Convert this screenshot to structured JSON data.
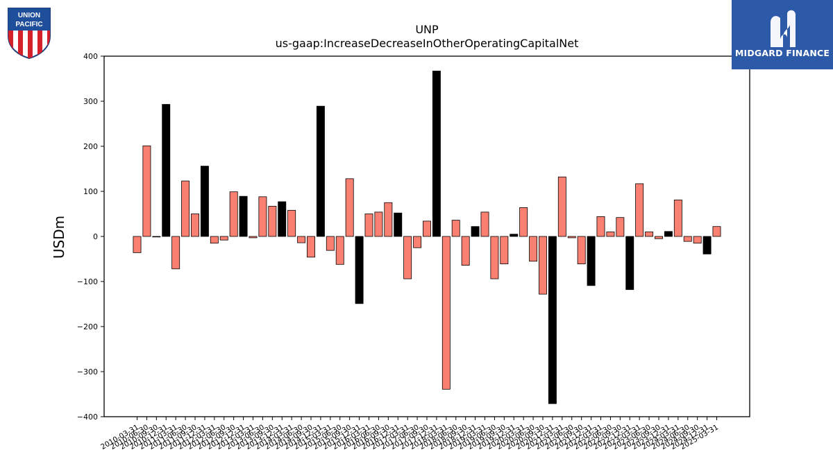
{
  "logos": {
    "left_name": "UNION PACIFIC",
    "left_line1": "UNION",
    "left_line2": "PACIFIC",
    "right_name": "MIDGARD FINANCE",
    "right_bg": "#2d59a9"
  },
  "colors": {
    "positive": "#fa8072",
    "highlight": "#000000"
  },
  "chart_data": {
    "type": "bar",
    "title": "UNP",
    "subtitle": "us-gaap:IncreaseDecreaseInOtherOperatingCapitalNet",
    "xlabel": "",
    "ylabel": "USDm",
    "ylim": [
      -400,
      400
    ],
    "yticks": [
      -400,
      -300,
      -200,
      -100,
      0,
      100,
      200,
      300,
      400
    ],
    "grid": false,
    "categories": [
      "2010-03-31",
      "2010-06-30",
      "2010-09-30",
      "2010-12-31",
      "2011-03-31",
      "2011-06-30",
      "2011-09-30",
      "2011-12-31",
      "2012-03-31",
      "2012-06-30",
      "2012-09-30",
      "2012-12-31",
      "2013-03-31",
      "2013-06-30",
      "2013-09-30",
      "2013-12-31",
      "2014-03-31",
      "2014-06-30",
      "2014-09-30",
      "2014-12-31",
      "2015-03-31",
      "2015-06-30",
      "2015-09-30",
      "2015-12-31",
      "2016-03-31",
      "2016-06-30",
      "2016-09-30",
      "2016-12-31",
      "2017-03-31",
      "2017-06-30",
      "2017-09-30",
      "2017-12-31",
      "2018-03-31",
      "2018-06-30",
      "2018-09-30",
      "2018-12-31",
      "2019-03-31",
      "2019-06-30",
      "2019-09-30",
      "2019-12-31",
      "2020-03-31",
      "2020-06-30",
      "2020-09-30",
      "2020-12-31",
      "2021-03-31",
      "2021-06-30",
      "2021-09-30",
      "2021-12-31",
      "2022-03-31",
      "2022-06-30",
      "2022-09-30",
      "2022-12-31",
      "2023-03-31",
      "2023-06-30",
      "2023-09-30",
      "2023-12-31",
      "2024-03-31",
      "2024-06-30",
      "2024-09-30",
      "2024-12-31",
      "2025-03-31"
    ],
    "tick_labels": [
      "2010-03-31",
      "2010-06-30",
      "2010-09-30",
      "2010-12-31",
      "2011-03-31",
      "2011-06-30",
      "2011-09-30",
      "2011-12-31",
      "2012-03-31",
      "2012-06-30",
      "2012-09-30",
      "2012-12-31",
      "2013-03-31",
      "2013-06-30",
      "2013-09-30",
      "2013-12-31",
      "2014-03-31",
      "2014-06-30",
      "2014-09-30",
      "2014-12-31",
      "2015-03-31",
      "2015-06-30",
      "2015-09-30",
      "2015-12-31",
      "2016-03-31",
      "2016-06-30",
      "2016-09-30",
      "2016-12-31",
      "2017-03-31",
      "2017-06-30",
      "2017-09-30",
      "2017-12-31",
      "2018-03-31",
      "2018-06-30",
      "2018-09-30",
      "2018-12-31",
      "2019-03-31",
      "2019-06-30",
      "2019-09-30",
      "2019-12-31",
      "2020-03-31",
      "2020-06-30",
      "2020-09-30",
      "2020-12-31",
      "2021-03-31",
      "2021-06-30",
      "2021-09-30",
      "2021-12-31",
      "2022-03-31",
      "2022-06-30",
      "2022-09-30",
      "2022-12-31",
      "2023-03-31",
      "2023-06-30",
      "2023-09-30",
      "2023-12-31",
      "2024-03-31",
      "2024-06-30",
      "2024-09-30",
      "2024-12-31",
      "2025-03-31"
    ],
    "values": [
      -36,
      201,
      0,
      293,
      -72,
      123,
      50,
      156,
      -15,
      -8,
      99,
      89,
      -3,
      88,
      67,
      77,
      58,
      -14,
      -46,
      289,
      -31,
      -62,
      128,
      -149,
      50,
      54,
      75,
      52,
      -94,
      -25,
      34,
      367,
      -339,
      36,
      -64,
      22,
      54,
      -94,
      -61,
      5,
      64,
      -55,
      -128,
      -371,
      132,
      -3,
      -61,
      -109,
      44,
      10,
      42,
      -118,
      117,
      10,
      -5,
      11,
      81,
      -11,
      -15,
      -39,
      22
    ],
    "highlight": [
      false,
      false,
      false,
      true,
      false,
      false,
      false,
      true,
      false,
      false,
      false,
      true,
      false,
      false,
      false,
      true,
      false,
      false,
      false,
      true,
      false,
      false,
      false,
      true,
      false,
      false,
      false,
      true,
      false,
      false,
      false,
      true,
      false,
      false,
      false,
      true,
      false,
      false,
      false,
      true,
      false,
      false,
      false,
      true,
      false,
      false,
      false,
      true,
      false,
      false,
      false,
      true,
      false,
      false,
      false,
      true,
      false,
      false,
      false,
      true,
      false
    ]
  }
}
